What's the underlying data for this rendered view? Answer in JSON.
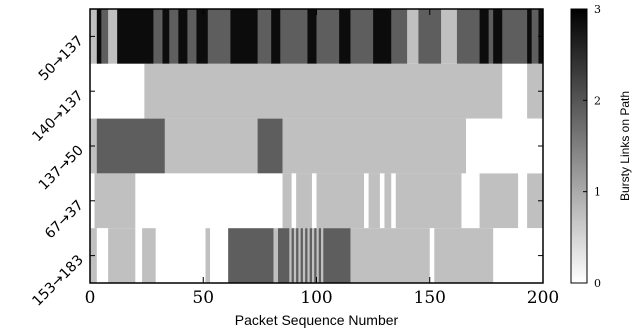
{
  "chart_data": {
    "type": "heatmap",
    "xlabel": "Packet Sequence Number",
    "xlim": [
      0,
      200
    ],
    "x_ticks": [
      "0",
      "50",
      "100",
      "150",
      "200"
    ],
    "rows": [
      "50→137",
      "140→137",
      "137→50",
      "67→37",
      "153→183"
    ],
    "colorbar": {
      "label": "Bursty Links on Path",
      "range": [
        0,
        3
      ],
      "ticks": [
        "0",
        "1",
        "2",
        "3"
      ]
    },
    "segments": [
      [
        [
          0,
          3,
          1
        ],
        [
          3,
          5,
          3
        ],
        [
          5,
          8,
          2
        ],
        [
          8,
          12,
          1
        ],
        [
          12,
          28,
          3
        ],
        [
          28,
          32,
          2
        ],
        [
          32,
          35,
          3
        ],
        [
          35,
          39,
          2
        ],
        [
          39,
          43,
          3
        ],
        [
          43,
          47,
          2
        ],
        [
          47,
          52,
          3
        ],
        [
          52,
          62,
          2
        ],
        [
          62,
          74,
          3
        ],
        [
          74,
          80,
          2
        ],
        [
          80,
          84,
          3
        ],
        [
          84,
          96,
          2
        ],
        [
          96,
          100,
          3
        ],
        [
          100,
          110,
          2
        ],
        [
          110,
          115,
          3
        ],
        [
          115,
          125,
          2
        ],
        [
          125,
          133,
          3
        ],
        [
          133,
          140,
          2
        ],
        [
          140,
          145,
          1
        ],
        [
          145,
          155,
          2
        ],
        [
          155,
          162,
          1
        ],
        [
          162,
          172,
          2
        ],
        [
          172,
          176,
          3
        ],
        [
          176,
          178,
          2
        ],
        [
          178,
          182,
          3
        ],
        [
          182,
          193,
          2
        ],
        [
          193,
          195,
          3
        ],
        [
          195,
          198,
          2
        ],
        [
          198,
          200,
          3
        ]
      ],
      [
        [
          0,
          24,
          0
        ],
        [
          24,
          182,
          1
        ],
        [
          182,
          193,
          0
        ],
        [
          193,
          200,
          1
        ]
      ],
      [
        [
          0,
          3,
          1
        ],
        [
          3,
          33,
          2
        ],
        [
          33,
          74,
          1
        ],
        [
          74,
          85,
          2
        ],
        [
          85,
          166,
          1
        ],
        [
          166,
          200,
          0
        ]
      ],
      [
        [
          0,
          2,
          0
        ],
        [
          2,
          20,
          1
        ],
        [
          20,
          85,
          0
        ],
        [
          85,
          89,
          1
        ],
        [
          89,
          91,
          0
        ],
        [
          91,
          98,
          1
        ],
        [
          98,
          100,
          0
        ],
        [
          100,
          121,
          1
        ],
        [
          121,
          123,
          0
        ],
        [
          123,
          128,
          1
        ],
        [
          128,
          130,
          0
        ],
        [
          130,
          133,
          1
        ],
        [
          133,
          135,
          0
        ],
        [
          135,
          164,
          1
        ],
        [
          164,
          172,
          0
        ],
        [
          172,
          189,
          1
        ],
        [
          189,
          193,
          0
        ],
        [
          193,
          200,
          1
        ]
      ],
      [
        [
          0,
          3,
          1
        ],
        [
          3,
          8,
          0
        ],
        [
          8,
          20,
          1
        ],
        [
          20,
          23,
          0
        ],
        [
          23,
          29,
          1
        ],
        [
          29,
          51,
          0
        ],
        [
          51,
          53,
          1
        ],
        [
          53,
          61,
          0
        ],
        [
          61,
          81,
          2
        ],
        [
          81,
          83,
          1
        ],
        [
          83,
          88,
          2
        ],
        [
          88,
          89,
          1
        ],
        [
          89,
          90,
          2
        ],
        [
          90,
          91,
          1
        ],
        [
          91,
          92,
          2
        ],
        [
          92,
          93,
          1
        ],
        [
          93,
          94,
          2
        ],
        [
          94,
          95,
          1
        ],
        [
          95,
          96,
          2
        ],
        [
          96,
          97,
          1
        ],
        [
          97,
          98,
          2
        ],
        [
          98,
          99,
          1
        ],
        [
          99,
          100,
          2
        ],
        [
          100,
          101,
          1
        ],
        [
          101,
          102,
          2
        ],
        [
          102,
          103,
          1
        ],
        [
          103,
          115,
          2
        ],
        [
          115,
          150,
          1
        ],
        [
          150,
          152,
          0
        ],
        [
          152,
          178,
          1
        ],
        [
          178,
          200,
          0
        ]
      ]
    ]
  }
}
